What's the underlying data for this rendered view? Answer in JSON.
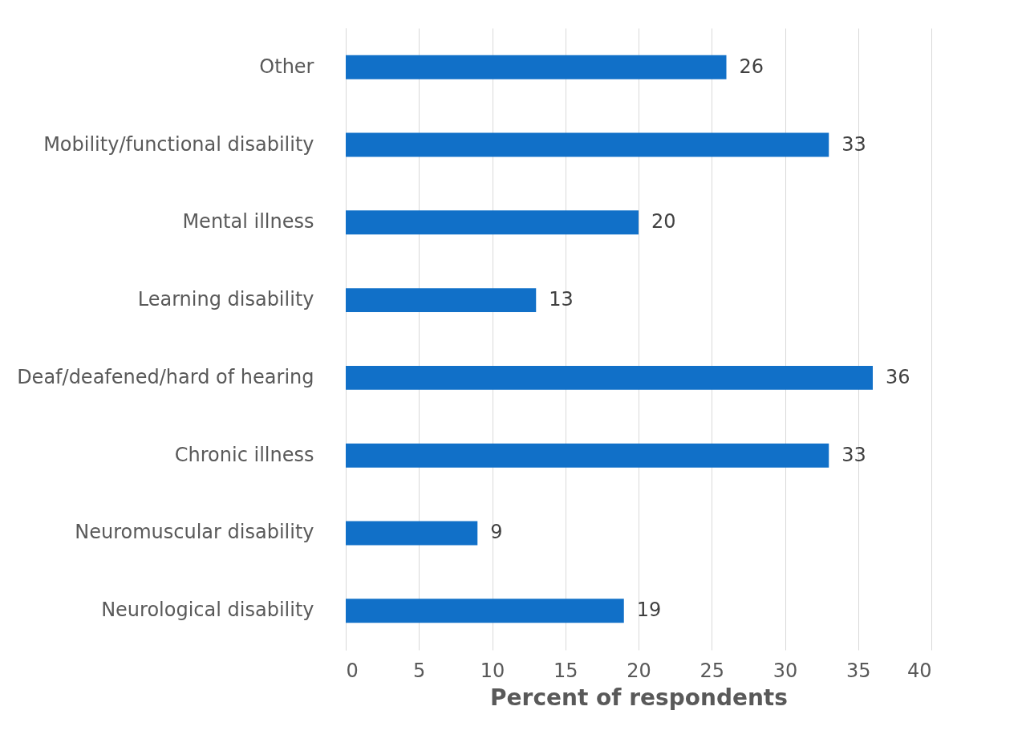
{
  "chart_data": {
    "type": "bar",
    "orientation": "horizontal",
    "xlabel": "Percent of respondents",
    "categories": [
      "Other",
      "Mobility/functional disability",
      "Mental illness",
      "Learning disability",
      "Deaf/deafened/hard of hearing",
      "Chronic illness",
      "Neuromuscular disability",
      "Neurological disability"
    ],
    "values": [
      26,
      33,
      20,
      13,
      36,
      33,
      9,
      19
    ],
    "color": "#1170c8",
    "xlim": [
      0,
      40
    ],
    "xticks": [
      0,
      5,
      10,
      15,
      20,
      25,
      30,
      35,
      40
    ],
    "grid": "x",
    "data_labels": true
  }
}
